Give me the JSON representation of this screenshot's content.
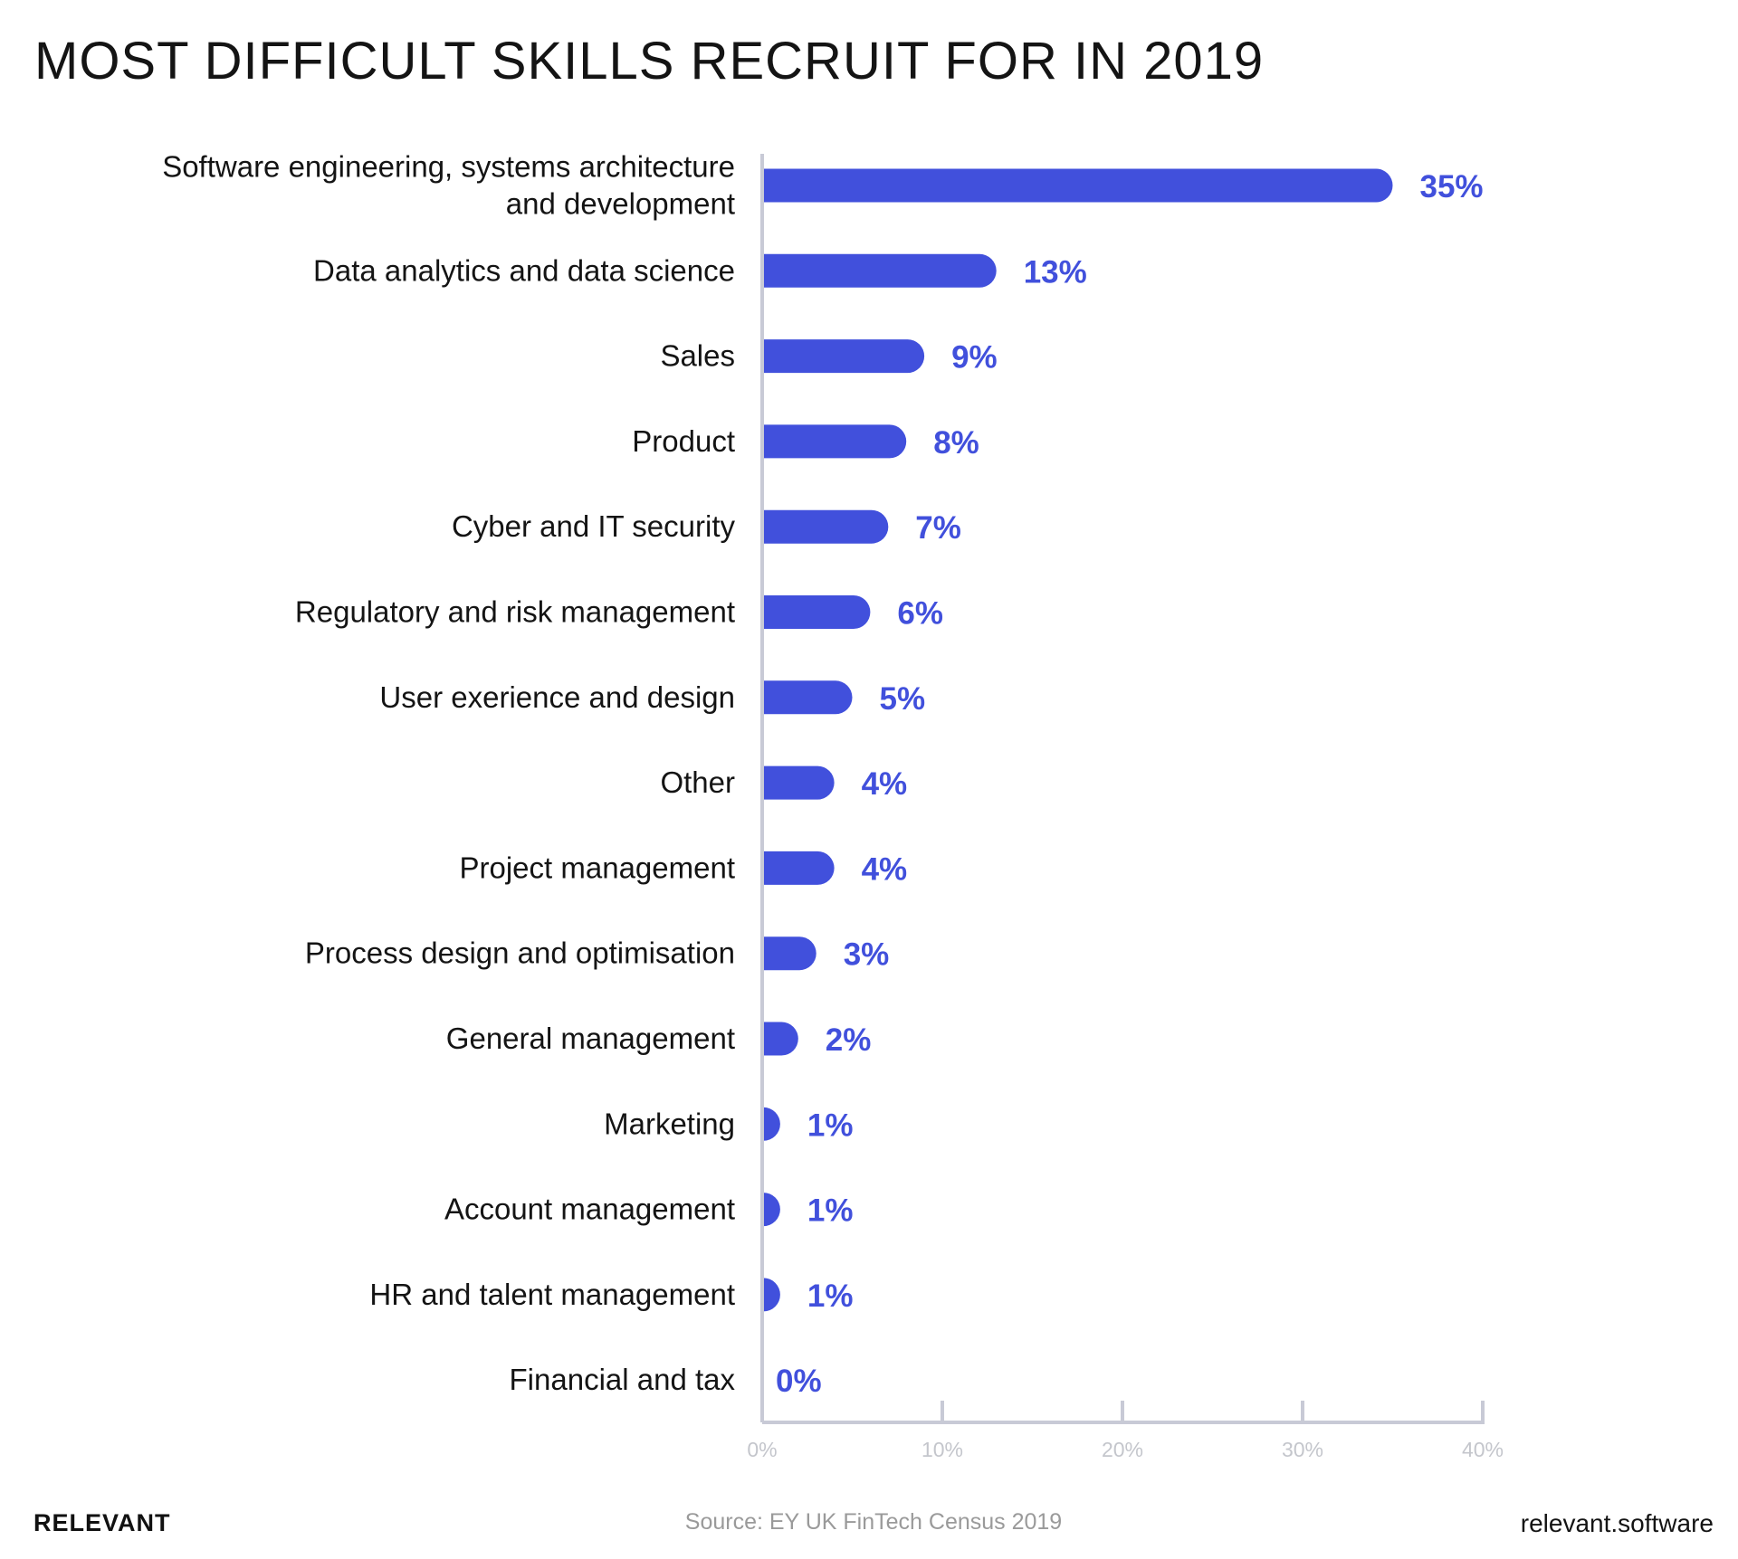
{
  "chart_data": {
    "type": "bar",
    "orientation": "horizontal",
    "title": "MOST DIFFICULT SKILLS RECRUIT FOR IN 2019",
    "categories": [
      "Software engineering, systems architecture and development",
      "Data analytics and data science",
      "Sales",
      "Product",
      "Cyber and IT security",
      "Regulatory and risk management",
      "User exerience and design",
      "Other",
      "Project management",
      "Process design and optimisation",
      "General management",
      "Marketing",
      "Account management",
      "HR and talent management",
      "Financial and tax"
    ],
    "category_lines": [
      [
        "Software engineering, systems architecture",
        "and development"
      ]
    ],
    "values": [
      35,
      13,
      9,
      8,
      7,
      6,
      5,
      4,
      4,
      3,
      2,
      1,
      1,
      1,
      0
    ],
    "value_labels": [
      "35%",
      "13%",
      "9%",
      "8%",
      "7%",
      "6%",
      "5%",
      "4%",
      "4%",
      "3%",
      "2%",
      "1%",
      "1%",
      "1%",
      "0%"
    ],
    "xlim": [
      0,
      40
    ],
    "x_ticks": [
      "0%",
      "10%",
      "20%",
      "30%",
      "40%"
    ],
    "grid": false,
    "bar_color": "#4150dc",
    "axis_color": "#c8cad6"
  },
  "footer": {
    "brand": "RELEVANT",
    "source": "Source: EY UK FinTech Census 2019",
    "site": "relevant.software"
  }
}
